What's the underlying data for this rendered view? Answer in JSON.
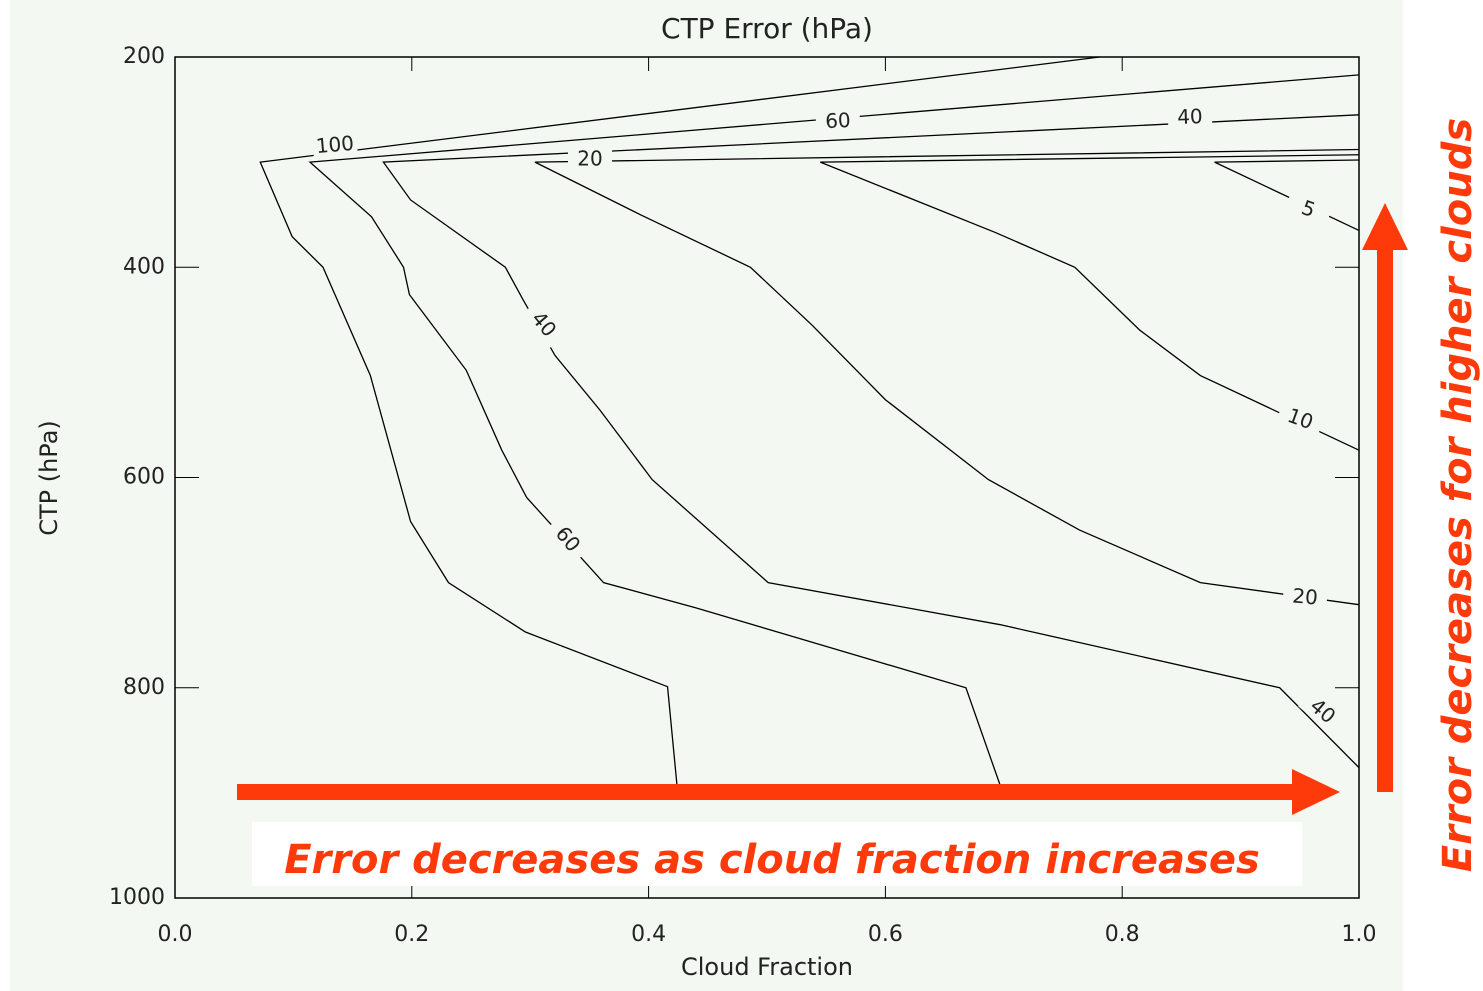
{
  "chart_data": {
    "type": "contour",
    "title": "CTP Error (hPa)",
    "x_label": "Cloud Fraction",
    "y_label": "CTP (hPa)",
    "xlim": [
      0,
      1
    ],
    "ylim": [
      200,
      1000
    ],
    "y_reversed": true,
    "xticks": [
      {
        "value": 0,
        "label": "0.0"
      },
      0.2,
      0.4,
      0.6,
      0.8,
      {
        "value": 1,
        "label": "1.0"
      }
    ],
    "yticks": [
      200,
      400,
      600,
      800,
      1000
    ],
    "color": "#000000",
    "contours": [
      {
        "level": 100,
        "x": [
          0.781,
          0.072,
          0.099,
          0.125,
          0.165,
          0.199,
          0.231,
          0.296,
          0.416,
          0.424
        ],
        "y": [
          200,
          300,
          371,
          400,
          503,
          642,
          700,
          747,
          799,
          893
        ]
      },
      {
        "level": 60,
        "x": [
          1.0,
          0.114,
          0.166,
          0.193,
          0.198,
          0.246,
          0.276,
          0.297,
          0.362,
          0.44,
          0.668,
          0.697
        ],
        "y": [
          217,
          300,
          352,
          400,
          426,
          498,
          574,
          619,
          700,
          724,
          800,
          893
        ]
      },
      {
        "level": 40,
        "x": [
          1.0,
          0.176,
          0.199,
          0.279,
          0.294,
          0.321,
          0.359,
          0.403,
          0.501,
          0.697,
          0.933,
          1.0
        ],
        "y": [
          255,
          300,
          336,
          400,
          431,
          484,
          536,
          602,
          700,
          740,
          800,
          876
        ]
      },
      {
        "level": 20,
        "x": [
          1.0,
          0.304,
          0.393,
          0.486,
          0.538,
          0.6,
          0.687,
          0.764,
          0.866,
          1.0
        ],
        "y": [
          288,
          300,
          350,
          400,
          455,
          526,
          602,
          650,
          700,
          721
        ]
      },
      {
        "level": 10,
        "x": [
          1.0,
          0.545,
          0.693,
          0.76,
          0.815,
          0.866,
          1.0
        ],
        "y": [
          293,
          300,
          367,
          400,
          460,
          503,
          574
        ]
      },
      {
        "level": 5,
        "x": [
          1.0,
          0.878,
          1.0
        ],
        "y": [
          298,
          300,
          365
        ]
      }
    ],
    "annotations": [
      "Error decreases as cloud fraction increases",
      "Error decreases for higher clouds"
    ]
  }
}
